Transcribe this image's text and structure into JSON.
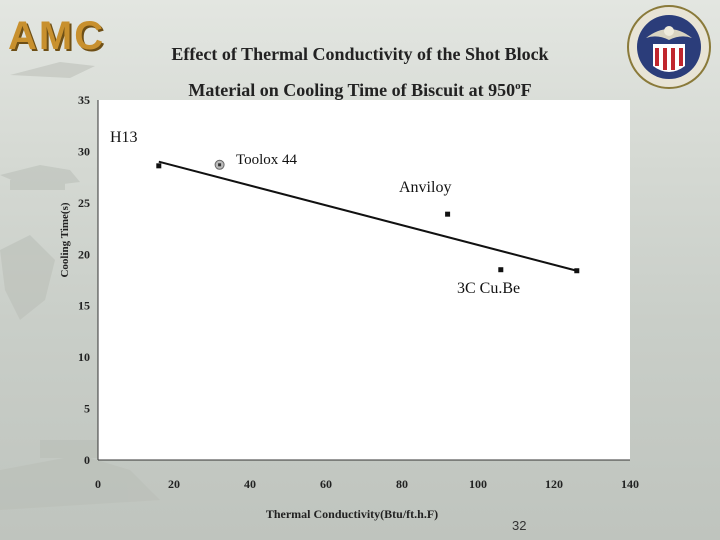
{
  "header": {
    "logo_text": "AMC",
    "title_line1": "Effect of Thermal Conductivity of the Shot Block",
    "title_line2_prefix": "Material on Cooling Time of Biscuit at 950",
    "title_line2_sup": "o",
    "title_line2_suffix": "F",
    "seal_icon": "defense-logistics-agency-seal-icon"
  },
  "chart_data": {
    "type": "scatter",
    "xlabel": "Thermal Conductivity(Btu/ft.h.F)",
    "ylabel": "Cooling Time(s)",
    "xlim": [
      0,
      140
    ],
    "ylim": [
      0,
      35
    ],
    "xticks": [
      0,
      20,
      40,
      60,
      80,
      100,
      120,
      140
    ],
    "yticks": [
      0,
      5,
      10,
      15,
      20,
      25,
      30,
      35
    ],
    "points": [
      {
        "label": "H13",
        "x": 16,
        "y": 28.6
      },
      {
        "label": "Toolox 44",
        "x": 32,
        "y": 28.7
      },
      {
        "label": "Anviloy",
        "x": 92,
        "y": 23.9
      },
      {
        "label": "3C Cu.Be",
        "x": 106,
        "y": 18.5
      },
      {
        "label": "",
        "x": 126,
        "y": 18.4
      }
    ],
    "trendline": {
      "x": [
        16,
        126
      ],
      "y": [
        29.0,
        18.4
      ]
    },
    "grid": false
  },
  "footer": {
    "page_number": "32"
  }
}
